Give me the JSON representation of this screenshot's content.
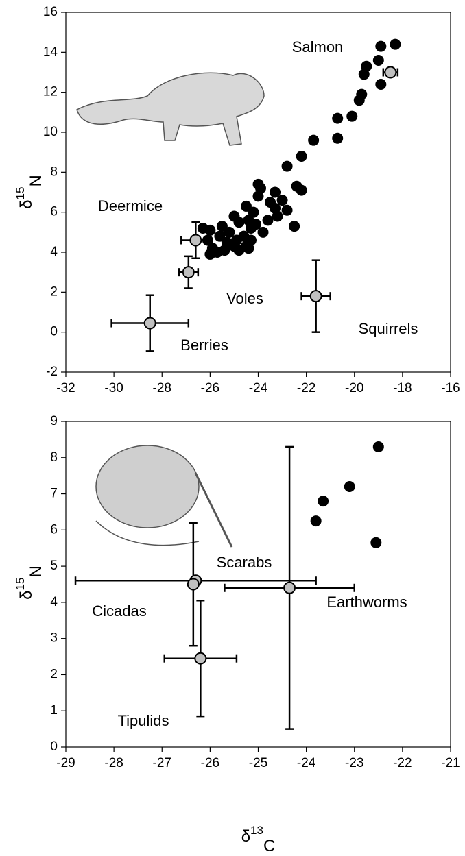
{
  "chart_data": [
    {
      "type": "scatter",
      "ylabel": [
        "δ",
        "15",
        "N"
      ],
      "xlim": [
        -32,
        -16
      ],
      "xticks": [
        -32,
        -30,
        -28,
        -26,
        -24,
        -22,
        -20,
        -18,
        -16
      ],
      "ylim": [
        -2,
        16
      ],
      "yticks": [
        -2,
        0,
        2,
        4,
        6,
        8,
        10,
        12,
        14,
        16
      ],
      "series": [
        {
          "color": "#000000",
          "x": [
            -18.3,
            -18.9,
            -19.0,
            -19.5,
            -19.6,
            -18.9,
            -19.7,
            -19.8,
            -20.1,
            -20.7,
            -20.7,
            -21.7,
            -22.2,
            -22.8,
            -22.4,
            -22.2,
            -23.3,
            -24.0,
            -23.9,
            -24.0,
            -23.5,
            -23.3,
            -23.0,
            -22.8,
            -23.2,
            -23.6,
            -22.5,
            -24.5,
            -24.2,
            -24.4,
            -24.3,
            -24.1,
            -23.8,
            -25.0,
            -24.8,
            -25.2,
            -25.5,
            -25.6,
            -26.0,
            -26.3,
            -26.1,
            -25.9,
            -26.0,
            -25.7,
            -25.3,
            -25.0,
            -24.8,
            -24.5,
            -24.3,
            -24.6,
            -24.9,
            -24.4,
            -25.4
          ],
          "y": [
            14.4,
            14.3,
            13.6,
            13.3,
            12.9,
            12.4,
            11.9,
            11.6,
            10.8,
            10.7,
            9.7,
            9.6,
            8.8,
            8.3,
            7.3,
            7.1,
            7.0,
            7.4,
            7.2,
            6.8,
            6.5,
            6.2,
            6.6,
            6.1,
            5.8,
            5.6,
            5.3,
            6.3,
            6.0,
            5.6,
            5.2,
            5.4,
            5.0,
            5.8,
            5.5,
            5.0,
            5.3,
            4.8,
            5.1,
            5.2,
            4.6,
            4.2,
            3.9,
            4.0,
            4.5,
            4.3,
            4.1,
            4.3,
            4.6,
            4.8,
            4.6,
            4.2,
            4.1
          ]
        }
      ],
      "group_color": "#c0c0c0",
      "groups": [
        {
          "name": "Salmon",
          "x": -18.5,
          "y": 13.0,
          "xerr": 0.3,
          "yerr": 0.2
        },
        {
          "name": "Deermice",
          "x": -26.6,
          "y": 4.6,
          "xerr": 0.6,
          "yerr": 0.9
        },
        {
          "name": "Voles",
          "x": -26.9,
          "y": 3.0,
          "xerr": 0.4,
          "yerr": 0.8
        },
        {
          "name": "Berries",
          "x": -28.5,
          "y": 0.45,
          "xerr": 1.6,
          "yerr": 1.4
        },
        {
          "name": "Squirrels",
          "x": -21.6,
          "y": 1.8,
          "xerr": 0.6,
          "yerr": 1.8
        }
      ]
    },
    {
      "type": "scatter",
      "ylabel": [
        "δ",
        "15",
        "N"
      ],
      "xlabel": [
        "δ",
        "13",
        "C"
      ],
      "xlim": [
        -29,
        -21
      ],
      "xticks": [
        -29,
        -28,
        -27,
        -26,
        -25,
        -24,
        -23,
        -22,
        -21
      ],
      "ylim": [
        0,
        9
      ],
      "yticks": [
        0,
        1,
        2,
        3,
        4,
        5,
        6,
        7,
        8,
        9
      ],
      "series": [
        {
          "color": "#000000",
          "x": [
            -22.5,
            -23.1,
            -23.65,
            -23.8,
            -22.55
          ],
          "y": [
            8.3,
            7.2,
            6.8,
            6.25,
            5.65
          ]
        }
      ],
      "group_color": "#c0c0c0",
      "groups": [
        {
          "name": "Scarabs",
          "x": -26.3,
          "y": 4.6,
          "xerr": 2.5,
          "yerr": null
        },
        {
          "name": "Cicadas",
          "x": -26.35,
          "y": 4.5,
          "xerr": null,
          "yerr": 1.7
        },
        {
          "name": "Earthworms",
          "x": -24.35,
          "y": 4.4,
          "xerr": 1.35,
          "yerr": 3.9
        },
        {
          "name": "Tipulids",
          "x": -26.2,
          "y": 2.45,
          "xerr": 0.75,
          "yerr": 1.6
        }
      ]
    }
  ]
}
